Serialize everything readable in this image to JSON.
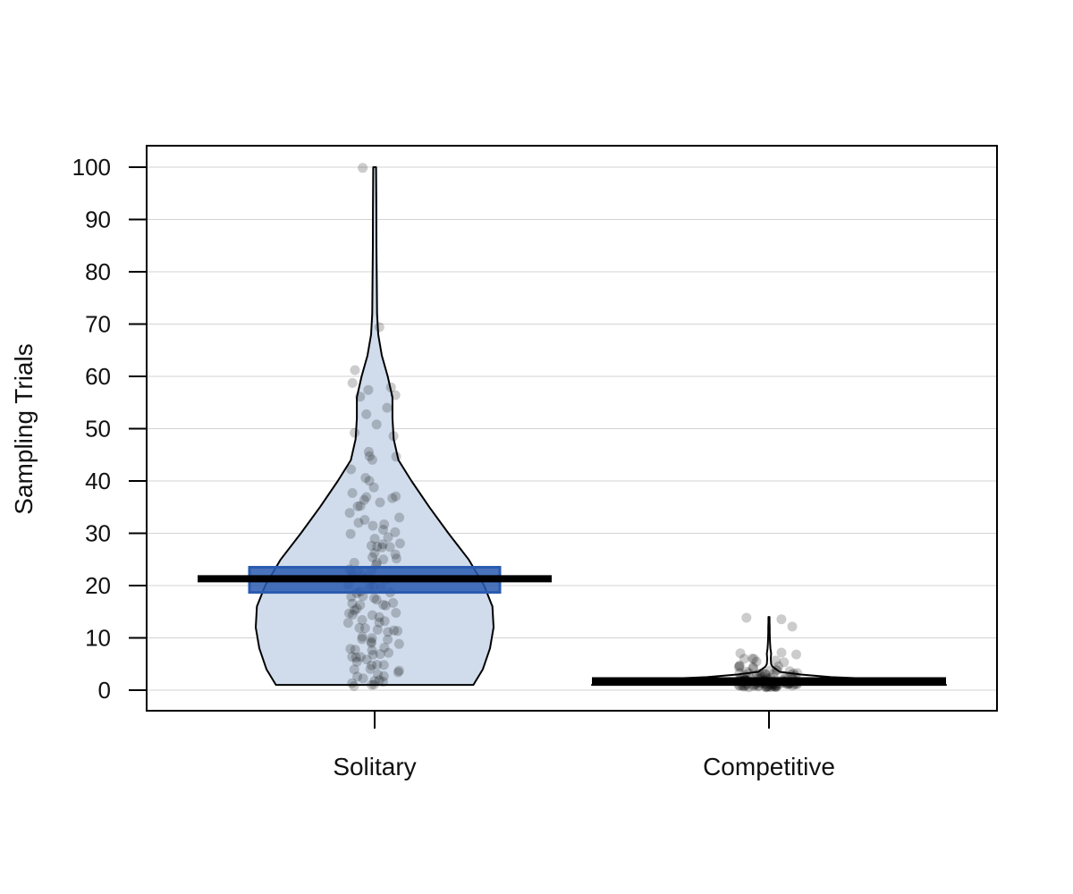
{
  "chart_data": {
    "type": "violin",
    "ylabel": "Sampling Trials",
    "xlabel": "",
    "ylim": [
      0,
      100
    ],
    "yticks": [
      0,
      10,
      20,
      30,
      40,
      50,
      60,
      70,
      80,
      90,
      100
    ],
    "grid": "horizontal",
    "colors": {
      "violin_fill": "#d0dcec",
      "hdi_fill": "#2a5bb0",
      "hdi_stroke": "#2a5bb0",
      "point": "#000000",
      "mean_bar": "#000000",
      "grid": "#d3d3d3"
    },
    "categories": [
      {
        "name": "Solitary",
        "mean": 21.3,
        "hdi": [
          18.7,
          23.5
        ],
        "density": [
          [
            1,
            0.83
          ],
          [
            4,
            0.91
          ],
          [
            8,
            0.97
          ],
          [
            12,
            1.0
          ],
          [
            16,
            0.99
          ],
          [
            20,
            0.92
          ],
          [
            25,
            0.79
          ],
          [
            30,
            0.62
          ],
          [
            35,
            0.46
          ],
          [
            40,
            0.31
          ],
          [
            44,
            0.2
          ],
          [
            48,
            0.16
          ],
          [
            52,
            0.15
          ],
          [
            56,
            0.15
          ],
          [
            60,
            0.11
          ],
          [
            64,
            0.06
          ],
          [
            68,
            0.03
          ],
          [
            72,
            0.02
          ],
          [
            78,
            0.018
          ],
          [
            85,
            0.015
          ],
          [
            92,
            0.014
          ],
          [
            100,
            0.012
          ]
        ],
        "points": [
          1,
          1,
          1,
          1,
          2,
          2,
          2,
          2,
          3,
          3,
          3,
          3,
          4,
          4,
          4,
          5,
          5,
          5,
          5,
          6,
          6,
          6,
          6,
          7,
          7,
          7,
          8,
          8,
          8,
          8,
          9,
          9,
          9,
          10,
          10,
          10,
          10,
          11,
          11,
          11,
          12,
          12,
          12,
          13,
          13,
          13,
          13,
          14,
          14,
          14,
          15,
          15,
          15,
          16,
          16,
          16,
          16,
          17,
          17,
          17,
          18,
          18,
          18,
          19,
          19,
          19,
          20,
          20,
          20,
          20,
          21,
          21,
          21,
          22,
          22,
          22,
          23,
          23,
          23,
          24,
          24,
          24,
          25,
          25,
          25,
          26,
          26,
          27,
          27,
          27,
          28,
          28,
          28,
          29,
          29,
          30,
          30,
          31,
          31,
          32,
          32,
          33,
          33,
          34,
          35,
          35,
          36,
          36,
          37,
          37,
          37,
          38,
          39,
          40,
          41,
          42,
          44,
          45,
          45,
          46,
          49,
          49,
          51,
          53,
          54,
          56,
          56,
          57,
          58,
          59,
          61,
          69,
          100
        ]
      },
      {
        "name": "Competitive",
        "mean": 1.8,
        "hdi": [
          1.4,
          2.2
        ],
        "density": [
          [
            1,
            1.0
          ],
          [
            1.5,
            0.95
          ],
          [
            2,
            0.7
          ],
          [
            2.5,
            0.35
          ],
          [
            3,
            0.18
          ],
          [
            3.5,
            0.06
          ],
          [
            4,
            0.04
          ],
          [
            4.5,
            0.02
          ],
          [
            5,
            0.012
          ],
          [
            6,
            0.01
          ],
          [
            7,
            0.012
          ],
          [
            8,
            0.008
          ],
          [
            9,
            0.006
          ],
          [
            10,
            0.005
          ],
          [
            11,
            0.004
          ],
          [
            12,
            0.004
          ],
          [
            13,
            0.003
          ],
          [
            14,
            0.003
          ]
        ],
        "points": [
          1,
          1,
          1,
          1,
          1,
          1,
          1,
          1,
          1,
          1,
          1,
          1,
          1,
          1,
          1,
          1,
          1,
          1,
          1,
          1,
          1,
          1,
          1,
          1,
          1,
          1,
          1,
          1,
          1,
          1,
          1,
          1,
          1,
          1,
          1,
          1,
          1,
          1,
          1,
          1,
          1,
          1,
          1,
          1,
          1,
          2,
          2,
          2,
          2,
          2,
          2,
          2,
          2,
          2,
          2,
          2,
          2,
          2,
          2,
          2,
          2,
          2,
          2,
          2,
          2,
          2,
          2,
          2,
          2,
          2,
          2,
          2,
          2,
          3,
          3,
          3,
          3,
          3,
          3,
          3,
          3,
          3,
          3,
          3,
          3,
          3,
          3,
          3,
          4,
          4,
          4,
          4,
          4,
          4,
          4,
          4,
          5,
          5,
          5,
          5,
          5,
          6,
          6,
          6,
          6,
          7,
          7,
          7,
          12,
          14,
          14
        ]
      }
    ]
  }
}
